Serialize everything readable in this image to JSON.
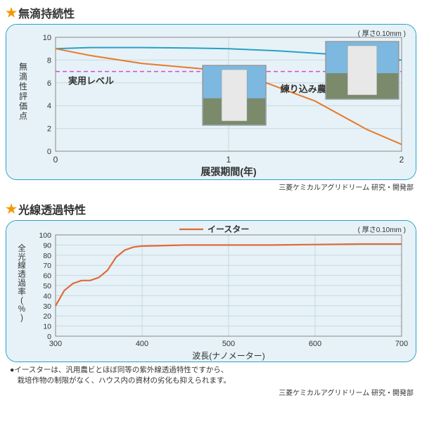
{
  "section1": {
    "title": "無滴持続性",
    "thickness_note": "( 厚さ0.10mm )",
    "credit": "三菱ケミカルアグリドリーム 研究・開発部",
    "chart": {
      "type": "line",
      "background_color": "#e6f2f7",
      "grid_color": "#c5d8e0",
      "x": {
        "label": "展張期間(年)",
        "min": 0,
        "max": 2,
        "ticks": [
          0,
          1,
          2
        ]
      },
      "y": {
        "label": "無滴性評価点",
        "min": 0,
        "max": 10,
        "ticks": [
          0,
          2,
          4,
          6,
          8,
          10
        ]
      },
      "practical_level": {
        "label": "実用レベル",
        "value": 7,
        "color": "#d94ccf",
        "dash": "6 4"
      },
      "series": [
        {
          "name": "blue",
          "color": "#29a0c7",
          "width": 2,
          "points": [
            [
              0,
              9
            ],
            [
              0.2,
              9.1
            ],
            [
              0.5,
              9.1
            ],
            [
              0.8,
              9.05
            ],
            [
              1.0,
              9.0
            ],
            [
              1.3,
              8.8
            ],
            [
              1.6,
              8.5
            ],
            [
              1.8,
              8.2
            ],
            [
              2.0,
              8.0
            ]
          ]
        },
        {
          "name": "練り込み農PO",
          "label": "練り込み農PO",
          "color": "#e87a2b",
          "width": 2,
          "points": [
            [
              0,
              9
            ],
            [
              0.2,
              8.4
            ],
            [
              0.5,
              7.7
            ],
            [
              0.8,
              7.3
            ],
            [
              1.0,
              7.0
            ],
            [
              1.2,
              6.1
            ],
            [
              1.5,
              4.4
            ],
            [
              1.8,
              1.9
            ],
            [
              2.0,
              0.6
            ]
          ]
        }
      ]
    }
  },
  "section2": {
    "title": "光線透過特性",
    "thickness_note": "( 厚さ0.10mm )",
    "credit": "三菱ケミカルアグリドリーム 研究・開発部",
    "legend_label": "イースター",
    "footnote1": "●イースターは、汎用農ビとほぼ同等の紫外線透過特性ですから、",
    "footnote2": "　栽培作物の制限がなく、ハウス内の資材の劣化も抑えられます。",
    "chart": {
      "type": "line",
      "background_color": "#e6f2f7",
      "grid_color": "#c5d8e0",
      "x": {
        "label": "波長(ナノメーター)",
        "min": 300,
        "max": 700,
        "ticks": [
          300,
          400,
          500,
          600,
          700
        ]
      },
      "y": {
        "label": "全光線透過率(%)",
        "min": 0,
        "max": 100,
        "ticks": [
          0,
          10,
          20,
          30,
          40,
          50,
          60,
          70,
          80,
          90,
          100
        ]
      },
      "series": [
        {
          "name": "イースター",
          "color": "#e06a3a",
          "width": 2.2,
          "points": [
            [
              300,
              30
            ],
            [
              310,
              45
            ],
            [
              320,
              52
            ],
            [
              330,
              55
            ],
            [
              340,
              55
            ],
            [
              350,
              58
            ],
            [
              360,
              65
            ],
            [
              370,
              78
            ],
            [
              380,
              85
            ],
            [
              390,
              88
            ],
            [
              400,
              89
            ],
            [
              450,
              90
            ],
            [
              500,
              90
            ],
            [
              550,
              90
            ],
            [
              600,
              90.5
            ],
            [
              650,
              91
            ],
            [
              700,
              91
            ]
          ]
        }
      ]
    }
  }
}
